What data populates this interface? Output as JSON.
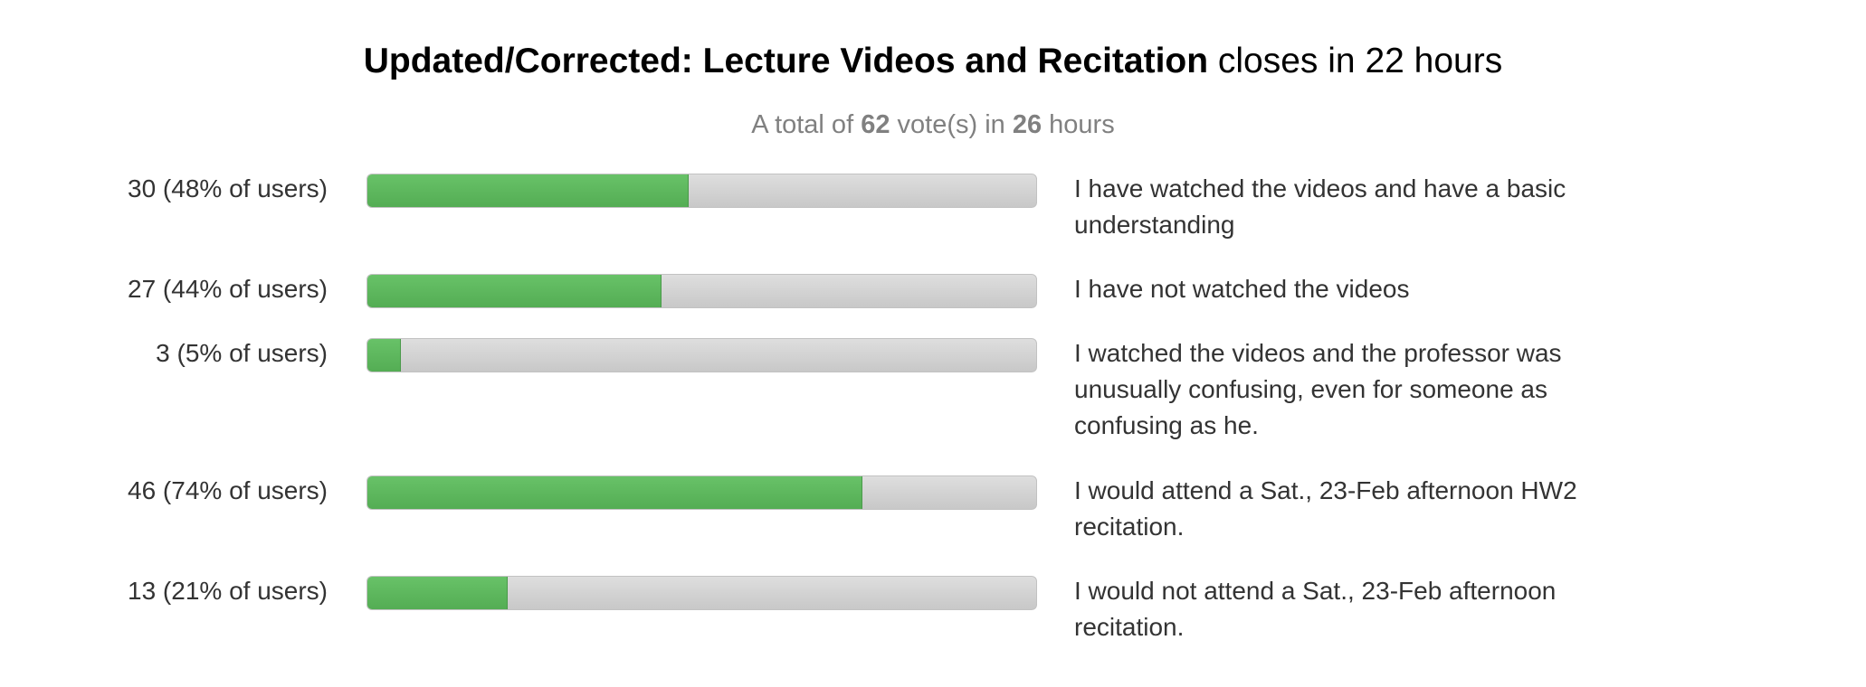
{
  "poll": {
    "title_bold": "Updated/Corrected: Lecture Videos and Recitation",
    "title_suffix": "closes in 22 hours",
    "summary": {
      "prefix": "A total of",
      "votes": "62",
      "middle": "vote(s) in",
      "hours": "26",
      "suffix": "hours"
    },
    "options": [
      {
        "count_label": "30 (48% of users)",
        "fraction": 0.48,
        "text": "I have watched the videos and have a basic understanding"
      },
      {
        "count_label": "27 (44% of users)",
        "fraction": 0.44,
        "text": "I have not watched the videos"
      },
      {
        "count_label": "3 (5% of users)",
        "fraction": 0.05,
        "text": "I watched the videos and the professor was unusually confusing, even for someone as confusing as he."
      },
      {
        "count_label": "46 (74% of users)",
        "fraction": 0.74,
        "text": "I would attend a Sat., 23-Feb afternoon HW2 recitation."
      },
      {
        "count_label": "13 (21% of users)",
        "fraction": 0.21,
        "text": "I would not attend a Sat., 23-Feb afternoon recitation."
      }
    ],
    "colors": {
      "bar_fill": "#5cb85c",
      "bar_track": "#d3d3d3",
      "summary_text": "#808080"
    }
  }
}
